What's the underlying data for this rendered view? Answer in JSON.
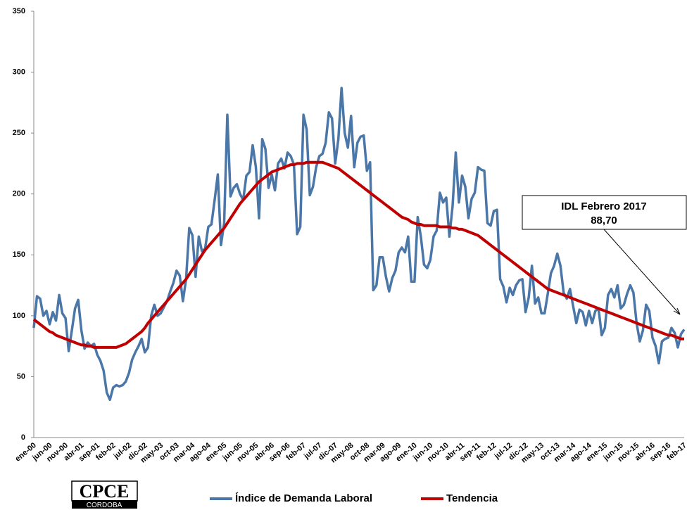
{
  "chart_data": {
    "type": "line",
    "categories": [
      "ene-00",
      null,
      null,
      null,
      null,
      "jun-00",
      null,
      null,
      null,
      null,
      "nov-00",
      null,
      null,
      null,
      null,
      "abr-01",
      null,
      null,
      null,
      null,
      "sep-01",
      null,
      null,
      null,
      null,
      "feb-02",
      null,
      null,
      null,
      null,
      "jul-02",
      null,
      null,
      null,
      null,
      "dic-02",
      null,
      null,
      null,
      null,
      "may-03",
      null,
      null,
      null,
      null,
      "oct-03",
      null,
      null,
      null,
      null,
      "mar-04",
      null,
      null,
      null,
      null,
      "ago-04",
      null,
      null,
      null,
      null,
      "ene-05",
      null,
      null,
      null,
      null,
      "jun-05",
      null,
      null,
      null,
      null,
      "nov-05",
      null,
      null,
      null,
      null,
      "abr-06",
      null,
      null,
      null,
      null,
      "sep-06",
      null,
      null,
      null,
      null,
      "feb-07",
      null,
      null,
      null,
      null,
      "jul-07",
      null,
      null,
      null,
      null,
      "dic-07",
      null,
      null,
      null,
      null,
      "may-08",
      null,
      null,
      null,
      null,
      "oct-08",
      null,
      null,
      null,
      null,
      "mar-09",
      null,
      null,
      null,
      null,
      "ago-09",
      null,
      null,
      null,
      null,
      "ene-10",
      null,
      null,
      null,
      null,
      "jun-10",
      null,
      null,
      null,
      null,
      "nov-10",
      null,
      null,
      null,
      null,
      "abr-11",
      null,
      null,
      null,
      null,
      "sep-11",
      null,
      null,
      null,
      null,
      "feb-12",
      null,
      null,
      null,
      null,
      "jul-12",
      null,
      null,
      null,
      null,
      "dic-12",
      null,
      null,
      null,
      null,
      "may-13",
      null,
      null,
      null,
      null,
      "oct-13",
      null,
      null,
      null,
      null,
      "mar-14",
      null,
      null,
      null,
      null,
      "ago-14",
      null,
      null,
      null,
      null,
      "ene-15",
      null,
      null,
      null,
      null,
      "jun-15",
      null,
      null,
      null,
      null,
      "nov-15",
      null,
      null,
      null,
      null,
      "abr-16",
      null,
      null,
      null,
      null,
      "sep-16",
      null,
      null,
      null,
      null,
      "feb-17"
    ],
    "series": [
      {
        "name": "Índice de Demanda Laboral",
        "color": "#4a76a8",
        "width": 3.5,
        "values": [
          90,
          116,
          114,
          100,
          104,
          93,
          103,
          96,
          117,
          102,
          98,
          71,
          88,
          106,
          113,
          88,
          73,
          78,
          75,
          77,
          68,
          63,
          55,
          37,
          31,
          41,
          43,
          42,
          43,
          46,
          53,
          64,
          70,
          75,
          81,
          70,
          74,
          100,
          109,
          100,
          102,
          107,
          112,
          120,
          127,
          137,
          133,
          112,
          130,
          172,
          166,
          132,
          165,
          153,
          155,
          173,
          175,
          195,
          216,
          158,
          176,
          265,
          198,
          205,
          208,
          200,
          195,
          215,
          218,
          240,
          222,
          180,
          245,
          237,
          205,
          216,
          203,
          225,
          229,
          221,
          234,
          231,
          224,
          167,
          173,
          265,
          253,
          199,
          206,
          222,
          231,
          233,
          242,
          267,
          262,
          225,
          245,
          287,
          250,
          238,
          264,
          222,
          242,
          247,
          248,
          219,
          226,
          121,
          125,
          148,
          148,
          132,
          120,
          131,
          137,
          152,
          156,
          152,
          165,
          128,
          128,
          181,
          165,
          142,
          139,
          146,
          165,
          170,
          201,
          193,
          197,
          165,
          190,
          234,
          193,
          215,
          206,
          180,
          196,
          201,
          222,
          220,
          219,
          176,
          174,
          186,
          187,
          130,
          124,
          111,
          123,
          117,
          125,
          129,
          130,
          103,
          115,
          141,
          110,
          115,
          102,
          102,
          118,
          135,
          141,
          151,
          141,
          119,
          114,
          122,
          108,
          94,
          105,
          103,
          92,
          104,
          94,
          104,
          106,
          84,
          90,
          117,
          122,
          115,
          125,
          106,
          109,
          118,
          125,
          119,
          94,
          79,
          88,
          109,
          104,
          82,
          75,
          61,
          79,
          81,
          82,
          90,
          86,
          74,
          85,
          88.7
        ]
      },
      {
        "name": "Tendencia",
        "color": "#c00000",
        "width": 4,
        "values": [
          97,
          95,
          93,
          91,
          89,
          87,
          86,
          84,
          83,
          82,
          81,
          80,
          79,
          78,
          77,
          76,
          76,
          75,
          75,
          74,
          74,
          74,
          74,
          74,
          74,
          74,
          74,
          75,
          76,
          77,
          79,
          81,
          83,
          85,
          87,
          90,
          94,
          97,
          100,
          103,
          106,
          109,
          112,
          115,
          118,
          121,
          124,
          127,
          130,
          134,
          138,
          142,
          146,
          150,
          154,
          157,
          160,
          163,
          166,
          169,
          172,
          176,
          180,
          184,
          188,
          192,
          195,
          198,
          201,
          204,
          207,
          210,
          212,
          214,
          216,
          218,
          219,
          220,
          221,
          222,
          223,
          224,
          224,
          225,
          225,
          225,
          226,
          226,
          226,
          226,
          226,
          226,
          225,
          224,
          223,
          222,
          221,
          219,
          217,
          215,
          213,
          211,
          209,
          207,
          205,
          203,
          201,
          199,
          197,
          195,
          193,
          191,
          189,
          187,
          185,
          183,
          181,
          180,
          179,
          177,
          176,
          175,
          175,
          174,
          174,
          174,
          174,
          174,
          173,
          173,
          173,
          173,
          172,
          172,
          171,
          171,
          170,
          169,
          168,
          167,
          166,
          164,
          162,
          160,
          158,
          156,
          154,
          152,
          150,
          148,
          146,
          144,
          142,
          140,
          138,
          136,
          134,
          132,
          130,
          128,
          126,
          124,
          122,
          121,
          120,
          119,
          118,
          117,
          116,
          115,
          114,
          113,
          112,
          111,
          110,
          109,
          108,
          107,
          106,
          105,
          104,
          103,
          102,
          101,
          100,
          99,
          98,
          97,
          96,
          95,
          94,
          93,
          92,
          91,
          90,
          89,
          88,
          87,
          86,
          85,
          84,
          84,
          83,
          82,
          81,
          81
        ]
      }
    ],
    "ylim": [
      0,
      350
    ],
    "yticks": [
      0,
      50,
      100,
      150,
      200,
      250,
      300,
      350
    ],
    "grid": false,
    "legend": "bottom",
    "annotations": [
      "IDL Febrero 2017",
      "88,70"
    ]
  },
  "logo": {
    "text": "CPCE",
    "subtext": "CORDOBA"
  }
}
